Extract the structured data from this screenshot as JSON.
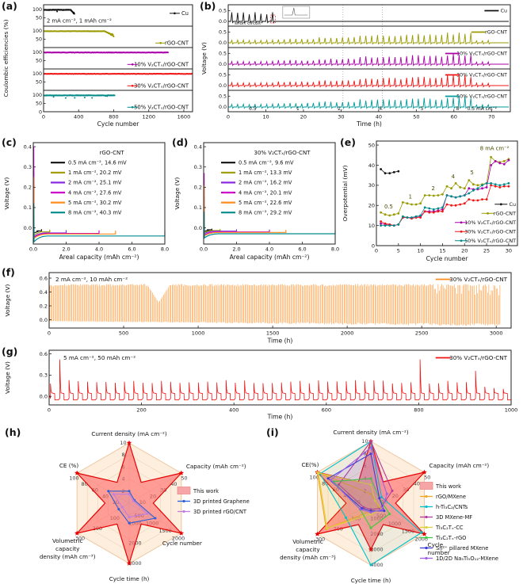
{
  "colors": {
    "cu": "#111111",
    "rgo_cnt": "#9a9a00",
    "v10": "#aa00aa",
    "v30": "#f01414",
    "v50": "#008b8b",
    "violet": "#8a2be2",
    "magenta": "#cc00cc",
    "orange": "#ff8c1f",
    "radar_bg": "#fdeedd",
    "radar_grid": "#f0d6bb",
    "this_work_fill": "#ff6b6b",
    "this_work_edge": "#e60000"
  },
  "chart_data": [
    {
      "panel": "(a)",
      "type": "scatter",
      "xlabel": "Cycle number",
      "ylabel": "Coulombic efficiencies (%)",
      "xlim": [
        0,
        1700
      ],
      "xticks": [
        0,
        400,
        800,
        1200,
        1600
      ],
      "strip_yticks": [
        100,
        50
      ],
      "y_base_label": "0",
      "annotation": "2 mA cm⁻², 1 mAh cm⁻²",
      "series": [
        {
          "label": "Cu",
          "color": "#111111",
          "end_cycle": 360,
          "ce": 98,
          "dips": true,
          "fade_end": true
        },
        {
          "label": "rGO-CNT",
          "color": "#9a9a00",
          "end_cycle": 810,
          "ce": 98.5,
          "dips": false,
          "fade_end": true
        },
        {
          "label": "10% V₂CTₓ/rGO-CNT",
          "color": "#aa00aa",
          "end_cycle": 1430,
          "ce": 99,
          "dips": false,
          "fade_end": false
        },
        {
          "label": "30% V₂CTₓ/rGO-CNT",
          "color": "#f01414",
          "end_cycle": 1700,
          "ce": 99.2,
          "dips": false,
          "fade_end": false
        },
        {
          "label": "50% V₂CTₓ/rGO-CNT",
          "color": "#008b8b",
          "end_cycle": 820,
          "ce": 98.5,
          "dips": true,
          "fade_end": false
        }
      ]
    },
    {
      "panel": "(b)",
      "type": "line",
      "xlabel": "Time (h)",
      "ylabel": "Voltage (V)",
      "xlim": [
        0,
        75
      ],
      "xticks": [
        0,
        10,
        20,
        30,
        40,
        50,
        60,
        70
      ],
      "strip_yticks": [
        "0.5",
        "0.0"
      ],
      "dotted_lines_h": [
        30.5,
        41
      ],
      "rate_segments": [
        {
          "label": "0.5",
          "t0": 0,
          "t1": 13,
          "amp": 0.12
        },
        {
          "label": "1",
          "t0": 13,
          "t1": 24,
          "amp": 0.17
        },
        {
          "label": "2",
          "t0": 24,
          "t1": 35,
          "amp": 0.23
        },
        {
          "label": "4",
          "t0": 35,
          "t1": 46,
          "amp": 0.32
        },
        {
          "label": "5",
          "t0": 46,
          "t1": 57,
          "amp": 0.37
        },
        {
          "label": "8",
          "t0": 57,
          "t1": 65,
          "amp": 0.43
        },
        {
          "label": "0.5 mA cm⁻²",
          "t0": 65,
          "t1": 70,
          "amp": 0.1
        }
      ],
      "series": [
        {
          "label": "Cu",
          "color": "#111111",
          "short_circuit_at": 12,
          "annotation": "short circuit"
        },
        {
          "label": "rGO-CNT",
          "color": "#9a9a00"
        },
        {
          "label": "10% V₂CTₓ/rGO-CNT",
          "color": "#aa00aa"
        },
        {
          "label": "30% V₂CTₓ/rGO-CNT",
          "color": "#f01414"
        },
        {
          "label": "50% V₂CTₓ/rGO-CNT",
          "color": "#009a9a"
        }
      ]
    },
    {
      "panel": "(c)",
      "type": "line",
      "title": "rGO-CNT",
      "xlabel": "Areal capacity (mAh cm⁻²)",
      "ylabel": "Voltage (V)",
      "xlim": [
        0,
        8
      ],
      "xticks": [
        0,
        2,
        4,
        6,
        8
      ],
      "xtick_labels": [
        "0.0",
        "2.0",
        "4.0",
        "6.0",
        "8.0"
      ],
      "ylim": [
        -0.08,
        0.42
      ],
      "yticks": [
        0.0,
        0.1,
        0.2,
        0.3,
        0.4
      ],
      "series": [
        {
          "label": "0.5 mA cm⁻², 14.6 mV",
          "rate_mA_cm2": 0.5,
          "overpotential_mV": 14.6,
          "capacity": 0.5,
          "peak": 0.02,
          "color": "#111111"
        },
        {
          "label": "1 mA cm⁻², 20.2 mV",
          "rate_mA_cm2": 1,
          "overpotential_mV": 20.2,
          "capacity": 1,
          "peak": 0.05,
          "color": "#9a9a00"
        },
        {
          "label": "2 mA cm⁻², 25.1 mV",
          "rate_mA_cm2": 2,
          "overpotential_mV": 25.1,
          "capacity": 2,
          "peak": 0.3,
          "color": "#8a2be2"
        },
        {
          "label": "4 mA cm⁻², 27.6 mV",
          "rate_mA_cm2": 4,
          "overpotential_mV": 27.6,
          "capacity": 4,
          "peak": 0.4,
          "color": "#cc00cc"
        },
        {
          "label": "5 mA cm⁻², 30.2 mV",
          "rate_mA_cm2": 5,
          "overpotential_mV": 30.2,
          "capacity": 5,
          "peak": 0.25,
          "color": "#ff8c1f"
        },
        {
          "label": "8 mA cm⁻², 40.3 mV",
          "rate_mA_cm2": 8,
          "overpotential_mV": 40.3,
          "capacity": 8,
          "peak": 0.12,
          "color": "#008b8b"
        }
      ]
    },
    {
      "panel": "(d)",
      "type": "line",
      "title": "30% V₂CTₓ/rGO-CNT",
      "xlabel": "Areal capacity (mAh cm⁻²)",
      "ylabel": "Voltage (V)",
      "xlim": [
        0,
        8
      ],
      "xticks": [
        0,
        2,
        4,
        6,
        8
      ],
      "xtick_labels": [
        "0.0",
        "2.0",
        "4.0",
        "6.0",
        "8.0"
      ],
      "ylim": [
        -0.08,
        0.42
      ],
      "yticks": [
        0.0,
        0.1,
        0.2,
        0.3,
        0.4
      ],
      "series": [
        {
          "label": "0.5 mA cm⁻²,  9.6 mV",
          "rate_mA_cm2": 0.5,
          "overpotential_mV": 9.6,
          "capacity": 0.5,
          "peak": 0.02,
          "color": "#111111"
        },
        {
          "label": "1 mA cm⁻², 13.3 mV",
          "rate_mA_cm2": 1,
          "overpotential_mV": 13.3,
          "capacity": 1,
          "peak": 0.04,
          "color": "#9a9a00"
        },
        {
          "label": "2 mA cm⁻², 16.2 mV",
          "rate_mA_cm2": 2,
          "overpotential_mV": 16.2,
          "capacity": 2,
          "peak": 0.15,
          "color": "#8a2be2"
        },
        {
          "label": "4 mA cm⁻², 20.1 mV",
          "rate_mA_cm2": 4,
          "overpotential_mV": 20.1,
          "capacity": 4,
          "peak": 0.27,
          "color": "#cc00cc"
        },
        {
          "label": "5 mA cm⁻², 22.6 mV",
          "rate_mA_cm2": 5,
          "overpotential_mV": 22.6,
          "capacity": 5,
          "peak": 0.21,
          "color": "#ff8c1f"
        },
        {
          "label": "8 mA cm⁻², 29.2 mV",
          "rate_mA_cm2": 8,
          "overpotential_mV": 29.2,
          "capacity": 8,
          "peak": 0.08,
          "color": "#008b8b"
        }
      ]
    },
    {
      "panel": "(e)",
      "type": "scatter",
      "xlabel": "Cycle number",
      "ylabel": "Overpotential (mV)",
      "xlim": [
        0,
        32
      ],
      "xticks": [
        0,
        5,
        10,
        15,
        20,
        25,
        30
      ],
      "ylim": [
        0,
        52
      ],
      "yticks": [
        0,
        10,
        20,
        30,
        40,
        50
      ],
      "rate_annotations": [
        {
          "label": "0.5",
          "x": 1.8,
          "y": 18.5
        },
        {
          "label": "1",
          "x": 7.3,
          "y": 23.5
        },
        {
          "label": "2",
          "x": 12.5,
          "y": 27.5
        },
        {
          "label": "4",
          "x": 17.0,
          "y": 33.5
        },
        {
          "label": "5",
          "x": 21.3,
          "y": 35.5
        },
        {
          "label": "8 mA cm⁻²",
          "x": 23.5,
          "y": 47.5
        }
      ],
      "series": [
        {
          "label": "Cu",
          "color": "#111111",
          "values": [
            38,
            36,
            36,
            36.5,
            37
          ]
        },
        {
          "label": "rGO-CNT",
          "color": "#9a9a00",
          "values": [
            16.5,
            15.5,
            15,
            15.5,
            16,
            21.5,
            21,
            20.5,
            20.5,
            21,
            25,
            25,
            24.8,
            25,
            25.5,
            29.5,
            28.5,
            31,
            29,
            28.5,
            32.5,
            30.5,
            30,
            30.5,
            31,
            44,
            42,
            41.5,
            42,
            43
          ]
        },
        {
          "label": "10% V₂CTₓ/rGO-CNT",
          "color": "#aa00aa",
          "values": [
            11,
            10.5,
            10.5,
            10,
            10.5,
            14,
            14,
            13.8,
            14,
            14.5,
            17,
            17,
            17,
            17.5,
            18,
            25,
            24.5,
            24,
            24.5,
            25,
            28.5,
            28,
            28,
            28.5,
            29,
            40,
            42,
            41,
            40.5,
            42.5
          ]
        },
        {
          "label": "30% V₂CTₓ/rGO-CNT",
          "color": "#f01414",
          "values": [
            12,
            11,
            10.5,
            10,
            10.5,
            14,
            14,
            13.5,
            14,
            14,
            17,
            16.5,
            16.5,
            17,
            17,
            20.5,
            20,
            20,
            20.5,
            21,
            23,
            22.5,
            22.5,
            23,
            23,
            30,
            29.5,
            29,
            29.5,
            29.5
          ]
        },
        {
          "label": "50% V₂CTₓ/rGO-CNT",
          "color": "#008b8b",
          "values": [
            10,
            10,
            10,
            10,
            10.5,
            14.5,
            14,
            14,
            14.5,
            15,
            19,
            18.5,
            18,
            18.5,
            19,
            25,
            24.5,
            24,
            24.5,
            25,
            26,
            27.5,
            28.5,
            30,
            31,
            31,
            30.5,
            30,
            30.5,
            31
          ]
        }
      ]
    },
    {
      "panel": "(f)",
      "type": "line",
      "annotation": "2 mA cm⁻², 10 mAh cm⁻²",
      "xlabel": "Time (h)",
      "ylabel": "Voltage (V)",
      "xlim": [
        0,
        3100
      ],
      "xticks": [
        0,
        500,
        1000,
        1500,
        2000,
        2500,
        3000
      ],
      "ylim": [
        -0.12,
        0.68
      ],
      "yticks": [
        0,
        0.2,
        0.4,
        0.6
      ],
      "ytick_labels": [
        "0.0",
        "0.2",
        "0.4",
        "0.6"
      ],
      "series": [
        {
          "label": "30% V₂CTₓ/rGO-CNT",
          "color": "#ff8c1f",
          "amplitude_V": 0.5,
          "t_end": 3030,
          "spike_period_h": 8.3,
          "dip": {
            "t0": 660,
            "t1": 810,
            "min_amp": 0.25
          }
        }
      ]
    },
    {
      "panel": "(g)",
      "type": "line",
      "annotation": "5 mA cm⁻², 50 mAh cm⁻²",
      "xlabel": "Time (h)",
      "ylabel": "Voltage (V)",
      "xlim": [
        0,
        1000
      ],
      "xticks": [
        0,
        200,
        400,
        600,
        800,
        1000
      ],
      "ylim": [
        -0.12,
        0.65
      ],
      "yticks": [
        0,
        0.3,
        0.6
      ],
      "ytick_labels": [
        "0.0",
        "0.3",
        "0.6"
      ],
      "series": [
        {
          "label": "30% V₂CTₓ/rGO-CNT",
          "color": "#f01414",
          "pulse_top_V": 0.2,
          "pulse_base_V": -0.05,
          "cycle_period_h": 20,
          "t_end": 1000,
          "post_fade_t": 935,
          "tall_spikes": [
            {
              "t": 20,
              "v": 0.52
            },
            {
              "t": 800,
              "v": 0.52
            },
            {
              "t": 925,
              "v": 0.36
            }
          ]
        }
      ]
    },
    {
      "panel": "(h)",
      "type": "radar",
      "axes": [
        {
          "label": "Current density (mA cm⁻²)",
          "label_lines": [
            "Current density (mA cm⁻²)"
          ],
          "max": 10,
          "ticks": [
            2,
            4,
            6,
            8,
            10
          ]
        },
        {
          "label": "Capacity (mAh cm⁻²)",
          "label_lines": [
            "Capacity (mAh cm⁻²)"
          ],
          "max": 50,
          "ticks": [
            10,
            20,
            30,
            40,
            50
          ]
        },
        {
          "label": "Cycle number",
          "label_lines": [
            "Cycle number"
          ],
          "max": 2000,
          "ticks": [
            500,
            1000,
            1500,
            2000
          ]
        },
        {
          "label": "Cycle time (h)",
          "label_lines": [
            "Cycle time (h)"
          ],
          "max": 3000,
          "ticks": [
            1000,
            2000,
            3000
          ]
        },
        {
          "label": "Volumetric capacity density (mAh cm⁻³)",
          "label_lines": [
            "Volumetric",
            "capacity",
            "density (mAh cm⁻³)"
          ],
          "max": 300,
          "ticks": [
            100,
            200,
            300
          ]
        },
        {
          "label": "CE (%)",
          "label_lines": [
            "CE (%)"
          ],
          "max": 100,
          "ticks": [
            20,
            40,
            60,
            80,
            100
          ]
        }
      ],
      "series": [
        {
          "label": "This work",
          "style": "star",
          "color": "#e60000",
          "fill": "#ff6b6b",
          "values": [
            10,
            50,
            2000,
            3000,
            300,
            100
          ]
        },
        {
          "label": "3D printed Graphene",
          "color": "#2b5fd9",
          "values": [
            2,
            5,
            1000,
            1000,
            60,
            40
          ]
        },
        {
          "label": "3D printed rGO/CNT",
          "color": "#bf7fe0",
          "values": [
            1.5,
            4,
            700,
            700,
            40,
            30
          ]
        }
      ]
    },
    {
      "panel": "(i)",
      "type": "radar",
      "axes": [
        {
          "label": "Current density (mA cm⁻²)",
          "label_lines": [
            "Current density (mA cm⁻²)"
          ],
          "max": 10,
          "ticks": [
            2,
            4,
            6,
            8,
            10
          ]
        },
        {
          "label": "Capacity (mAh cm⁻²)",
          "label_lines": [
            "Capacity (mAh cm⁻²)"
          ],
          "max": 50,
          "ticks": [
            10,
            20,
            30,
            40,
            50
          ]
        },
        {
          "label": "Cycle number",
          "label_lines": [
            "Cycle",
            "number"
          ],
          "max": 2000,
          "ticks": [
            500,
            1000,
            1500,
            2000
          ]
        },
        {
          "label": "Cycle time (h)",
          "label_lines": [
            "Cycle time (h)"
          ],
          "max": 4000,
          "ticks": [
            1000,
            2000,
            3000,
            4000
          ]
        },
        {
          "label": "Volumetric capacity density (mAh cm⁻³)",
          "label_lines": [
            "Volumetric",
            "capacity",
            "density (mAh cm⁻³)"
          ],
          "max": 300,
          "ticks": [
            100,
            200,
            300
          ]
        },
        {
          "label": "CE(%)",
          "label_lines": [
            "CE(%)"
          ],
          "max": 100,
          "ticks": [
            20,
            40,
            60,
            80,
            100
          ]
        }
      ],
      "series": [
        {
          "label": "This work",
          "style": "star",
          "color": "#e60000",
          "fill": "#ff6b6b",
          "values": [
            10,
            50,
            2000,
            3000,
            300,
            100
          ]
        },
        {
          "label": "rGO/MXene",
          "color": "#f5a623",
          "values": [
            1.5,
            4,
            300,
            500,
            250,
            100
          ]
        },
        {
          "label": "h-Ti₃C₂/CNTs",
          "color": "#00c0cc",
          "values": [
            10,
            10,
            1900,
            4000,
            140,
            95
          ]
        },
        {
          "label": "3D MXene-MF",
          "color": "#b5399e",
          "values": [
            10,
            20,
            350,
            400,
            40,
            60
          ]
        },
        {
          "label": "Ti₃C₂Tₓ-CC",
          "color": "#ddd23a",
          "values": [
            3,
            4,
            400,
            700,
            245,
            98
          ]
        },
        {
          "label": "Ti₃C₂Tₓ-rGO",
          "color": "#3ecc3e",
          "values": [
            4,
            8,
            700,
            1600,
            60,
            70
          ]
        },
        {
          "label": "Sn²⁺ pillared MXene",
          "color": "#3a3ad9",
          "values": [
            8,
            8,
            500,
            500,
            50,
            80
          ]
        },
        {
          "label": "1D/2D Na₃Ti₅O₁₂-MXene",
          "color": "#a05fe6",
          "values": [
            9,
            15,
            420,
            600,
            60,
            75
          ]
        }
      ]
    }
  ]
}
